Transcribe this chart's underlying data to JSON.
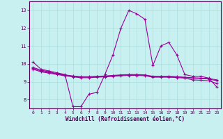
{
  "xlabel": "Windchill (Refroidissement éolien,°C)",
  "background_color": "#c8f0f0",
  "line_color": "#990099",
  "grid_color": "#aadddd",
  "ylim": [
    7.5,
    13.5
  ],
  "xlim": [
    -0.5,
    23.5
  ],
  "yticks": [
    8,
    9,
    10,
    11,
    12,
    13
  ],
  "xticks": [
    0,
    1,
    2,
    3,
    4,
    5,
    6,
    7,
    8,
    9,
    10,
    11,
    12,
    13,
    14,
    15,
    16,
    17,
    18,
    19,
    20,
    21,
    22,
    23
  ],
  "series1": [
    10.1,
    9.7,
    9.6,
    9.5,
    9.4,
    7.6,
    7.6,
    8.3,
    8.4,
    9.4,
    10.5,
    12.0,
    13.0,
    12.8,
    12.5,
    9.9,
    11.0,
    11.2,
    10.5,
    9.4,
    9.3,
    9.3,
    9.2,
    8.7
  ],
  "series2": [
    9.8,
    9.65,
    9.55,
    9.45,
    9.38,
    9.32,
    9.28,
    9.28,
    9.3,
    9.32,
    9.35,
    9.38,
    9.4,
    9.4,
    9.38,
    9.3,
    9.3,
    9.3,
    9.28,
    9.25,
    9.22,
    9.2,
    9.18,
    9.1
  ],
  "series3": [
    9.75,
    9.6,
    9.52,
    9.43,
    9.36,
    9.3,
    9.25,
    9.25,
    9.28,
    9.3,
    9.33,
    9.36,
    9.38,
    9.38,
    9.36,
    9.28,
    9.28,
    9.28,
    9.26,
    9.23,
    9.2,
    9.17,
    9.15,
    9.05
  ],
  "series4": [
    9.7,
    9.55,
    9.48,
    9.4,
    9.33,
    9.27,
    9.22,
    9.22,
    9.25,
    9.27,
    9.3,
    9.33,
    9.35,
    9.35,
    9.33,
    9.25,
    9.25,
    9.25,
    9.23,
    9.2,
    9.1,
    9.08,
    9.05,
    8.9
  ]
}
